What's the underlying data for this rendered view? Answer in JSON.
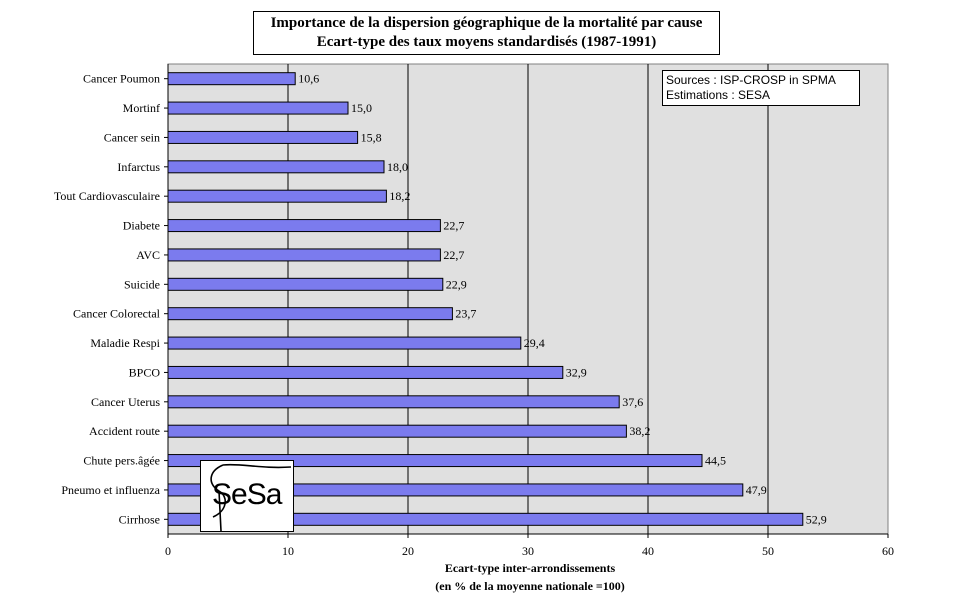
{
  "chart_data": {
    "type": "bar",
    "orientation": "horizontal",
    "title_line1": "Importance de la dispersion géographique de la mortalité  par cause",
    "title_line2": "Ecart-type des taux moyens standardisés  (1987-1991)",
    "xlabel_line1": "Ecart-type inter-arrondissements",
    "xlabel_line2": "(en % de la moyenne nationale =100)",
    "categories": [
      "Cancer Poumon",
      "Mortinf",
      "Cancer sein",
      "Infarctus",
      "Tout Cardiovasculaire",
      "Diabete",
      "AVC",
      "Suicide",
      "Cancer Colorectal",
      "Maladie Respi",
      "BPCO",
      "Cancer Uterus",
      "Accident route",
      "Chute pers.âgée",
      "Pneumo et influenza",
      "Cirrhose"
    ],
    "values": [
      10.6,
      15.0,
      15.8,
      18.0,
      18.2,
      22.7,
      22.7,
      22.9,
      23.7,
      29.4,
      32.9,
      37.6,
      38.2,
      44.5,
      47.9,
      52.9
    ],
    "value_labels": [
      "10,6",
      "15,0",
      "15,8",
      "18,0",
      "18,2",
      "22,7",
      "22,7",
      "22,9",
      "23,7",
      "29,4",
      "32,9",
      "37,6",
      "38,2",
      "44,5",
      "47,9",
      "52,9"
    ],
    "xlim": [
      0,
      60
    ],
    "xticks": [
      "0",
      "10",
      "20",
      "30",
      "40",
      "50",
      "60"
    ],
    "grid": true,
    "colors": {
      "bar": "#7b7bee",
      "bar_border": "#000000",
      "plot_bg": "#e0e0e0"
    }
  },
  "sources": {
    "line1": "Sources : ISP-CROSP in  SPMA",
    "line2": "Estimations : SESA"
  },
  "logo": {
    "text": "SeSa"
  }
}
